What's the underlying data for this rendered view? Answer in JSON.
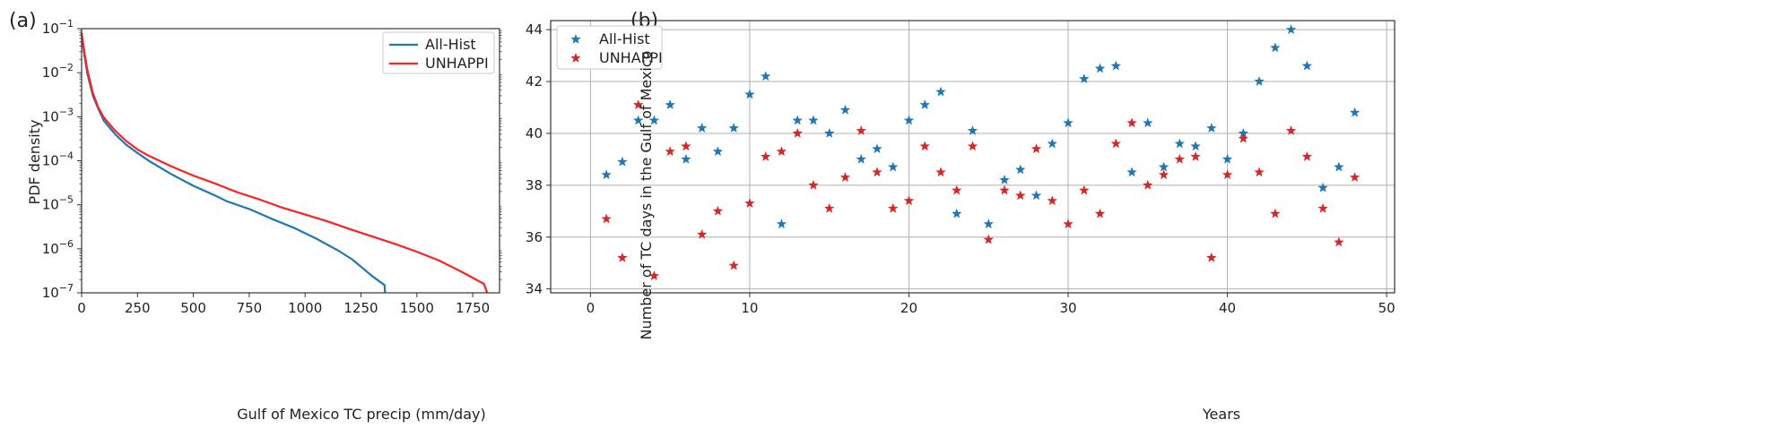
{
  "panel_labels": [
    "(a)",
    "(b)"
  ],
  "chart_data": [
    {
      "type": "line",
      "panel": "(a)",
      "xlabel": "Gulf of Mexico TC precip (mm/day)",
      "ylabel": "PDF density",
      "xlim": [
        0,
        1870
      ],
      "ylim": [
        1e-07,
        0.1
      ],
      "yscale": "log",
      "grid": false,
      "legend_position": "top-right",
      "xticks": [
        0,
        250,
        500,
        750,
        1000,
        1250,
        1500,
        1750
      ],
      "xtick_labels": [
        "0",
        "250",
        "500",
        "750",
        "1000",
        "1250",
        "1500",
        "1750"
      ],
      "yticks": [
        1e-07,
        1e-06,
        1e-05,
        0.0001,
        0.001,
        0.01,
        0.1
      ],
      "ytick_labels": [
        {
          "base": "10",
          "exp": "−7"
        },
        {
          "base": "10",
          "exp": "−6"
        },
        {
          "base": "10",
          "exp": "−5"
        },
        {
          "base": "10",
          "exp": "−4"
        },
        {
          "base": "10",
          "exp": "−3"
        },
        {
          "base": "10",
          "exp": "−2"
        },
        {
          "base": "10",
          "exp": "−1"
        }
      ],
      "series": [
        {
          "name": "All-Hist",
          "color": "#1f77b4",
          "x": [
            0,
            10,
            25,
            50,
            75,
            100,
            150,
            200,
            250,
            300,
            400,
            500,
            600,
            650,
            750,
            850,
            950,
            1050,
            1150,
            1210,
            1300,
            1355,
            1358
          ],
          "y": [
            0.08,
            0.03,
            0.01,
            0.003,
            0.0015,
            0.0008,
            0.0004,
            0.00023,
            0.00015,
            0.0001,
            5e-05,
            2.7e-05,
            1.6e-05,
            1.2e-05,
            8e-06,
            4.8e-06,
            3e-06,
            1.7e-06,
            9e-07,
            5.8e-07,
            2.4e-07,
            1.5e-07,
            1e-07
          ]
        },
        {
          "name": "UNHAPPI",
          "color": "#ff2020",
          "x": [
            0,
            10,
            25,
            50,
            75,
            100,
            150,
            200,
            250,
            300,
            400,
            500,
            600,
            700,
            800,
            900,
            1000,
            1100,
            1200,
            1300,
            1400,
            1500,
            1600,
            1700,
            1800,
            1815
          ],
          "y": [
            0.08,
            0.035,
            0.012,
            0.0035,
            0.0016,
            0.00095,
            0.00048,
            0.00028,
            0.00018,
            0.00013,
            7.5e-05,
            4.6e-05,
            3e-05,
            1.9e-05,
            1.3e-05,
            8.5e-06,
            6e-06,
            4.2e-06,
            2.8e-06,
            1.9e-06,
            1.3e-06,
            8.6e-07,
            5.4e-07,
            3e-07,
            1.6e-07,
            1e-07
          ]
        }
      ]
    },
    {
      "type": "scatter",
      "panel": "(b)",
      "xlabel": "Years",
      "ylabel": "Number of TC days in the Gulf of Mexico",
      "xlim": [
        -2.5,
        50.5
      ],
      "ylim": [
        33.85,
        44.35
      ],
      "grid": true,
      "legend_position": "top-left",
      "marker": "star",
      "xticks": [
        0,
        10,
        20,
        30,
        40,
        50
      ],
      "xtick_labels": [
        "0",
        "10",
        "20",
        "30",
        "40",
        "50"
      ],
      "yticks": [
        34,
        36,
        38,
        40,
        42,
        44
      ],
      "ytick_labels": [
        "34",
        "36",
        "38",
        "40",
        "42",
        "44"
      ],
      "series": [
        {
          "name": "All-Hist",
          "color": "#1f77b4",
          "x": [
            1,
            2,
            3,
            4,
            5,
            6,
            7,
            8,
            9,
            10,
            11,
            12,
            13,
            14,
            15,
            16,
            17,
            18,
            19,
            20,
            21,
            22,
            23,
            24,
            25,
            26,
            27,
            28,
            29,
            30,
            31,
            32,
            33,
            34,
            35,
            36,
            37,
            38,
            39,
            40,
            41,
            42,
            43,
            44,
            45,
            46,
            47,
            48
          ],
          "y": [
            38.4,
            38.9,
            40.5,
            40.5,
            41.1,
            39.0,
            40.2,
            39.3,
            40.2,
            41.5,
            42.2,
            36.5,
            40.5,
            40.5,
            40.0,
            40.9,
            39.0,
            39.4,
            38.7,
            40.5,
            41.1,
            41.6,
            36.9,
            40.1,
            36.5,
            38.2,
            38.6,
            37.6,
            39.6,
            40.4,
            42.1,
            42.5,
            42.6,
            38.5,
            40.4,
            38.7,
            39.6,
            39.5,
            40.2,
            39.0,
            40.0,
            42.0,
            43.3,
            44.0,
            42.6,
            37.9,
            38.7,
            40.8
          ]
        },
        {
          "name": "UNHAPPI",
          "color": "#d62728",
          "x": [
            1,
            2,
            3,
            4,
            5,
            6,
            7,
            8,
            9,
            10,
            11,
            12,
            13,
            14,
            15,
            16,
            17,
            18,
            19,
            20,
            21,
            22,
            23,
            24,
            25,
            26,
            27,
            28,
            29,
            30,
            31,
            32,
            33,
            34,
            35,
            36,
            37,
            38,
            39,
            40,
            41,
            42,
            43,
            44,
            45,
            46,
            47,
            48
          ],
          "y": [
            36.7,
            35.2,
            41.1,
            34.5,
            39.3,
            39.5,
            36.1,
            37.0,
            34.9,
            37.3,
            39.1,
            39.3,
            40.0,
            38.0,
            37.1,
            38.3,
            40.1,
            38.5,
            37.1,
            37.4,
            39.5,
            38.5,
            37.8,
            39.5,
            35.9,
            37.8,
            37.6,
            39.4,
            37.4,
            36.5,
            37.8,
            36.9,
            39.6,
            40.4,
            38.0,
            38.4,
            39.0,
            39.1,
            35.2,
            38.4,
            39.8,
            38.5,
            36.9,
            40.1,
            39.1,
            37.1,
            35.8,
            38.3
          ]
        }
      ]
    }
  ]
}
